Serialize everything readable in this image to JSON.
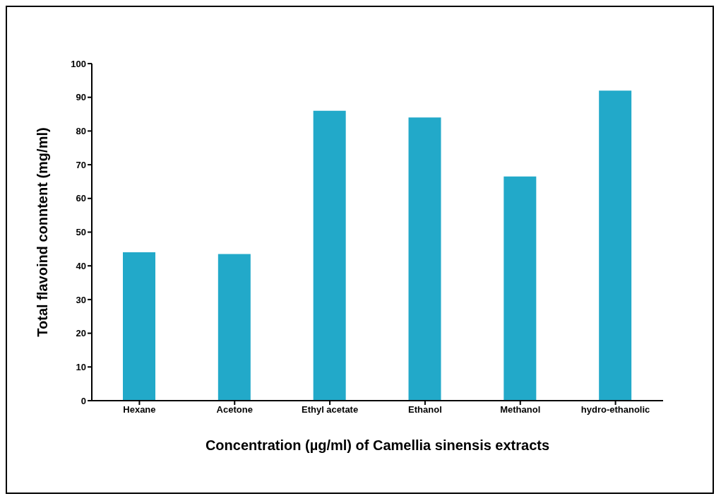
{
  "chart_data": {
    "type": "bar",
    "xlabel": "Concentration (µg/ml) of Camellia sinensis extracts",
    "ylabel": "Total flavoind conntent (mg/ml)",
    "categories": [
      "Hexane",
      "Acetone",
      "Ethyl acetate",
      "Ethanol",
      "Methanol",
      "hydro-ethanolic"
    ],
    "values": [
      44,
      43.5,
      86,
      84,
      66.5,
      92
    ],
    "color": "#22a9c9",
    "ylim": [
      0,
      100
    ],
    "yticks": [
      0,
      10,
      20,
      30,
      40,
      50,
      60,
      70,
      80,
      90,
      100
    ],
    "grid": false
  }
}
